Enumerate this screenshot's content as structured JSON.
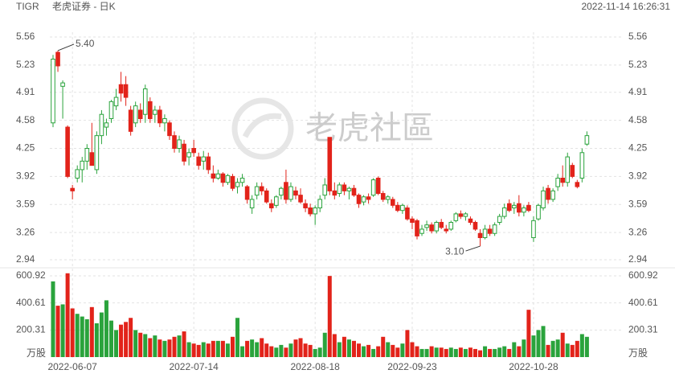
{
  "chart_data": {
    "type": "candlestick",
    "symbol": "TIGR",
    "title": "老虎证券 - 日K",
    "timestamp": "2022-11-14 16:26:31",
    "watermark": "老虎社區",
    "x": [
      null,
      null,
      null,
      null,
      "2022-06-07",
      null,
      null,
      null,
      null,
      null,
      null,
      null,
      null,
      null,
      null,
      null,
      null,
      null,
      null,
      null,
      null,
      null,
      null,
      null,
      null,
      null,
      null,
      null,
      null,
      "2022-07-14",
      null,
      null,
      null,
      null,
      null,
      null,
      null,
      null,
      null,
      null,
      null,
      null,
      null,
      null,
      null,
      null,
      null,
      null,
      null,
      null,
      null,
      null,
      null,
      null,
      "2022-08-18",
      null,
      null,
      null,
      null,
      null,
      null,
      null,
      null,
      null,
      null,
      null,
      null,
      null,
      null,
      null,
      null,
      null,
      null,
      null,
      "2022-09-23",
      null,
      null,
      null,
      null,
      null,
      null,
      null,
      null,
      null,
      null,
      null,
      null,
      null,
      null,
      null,
      null,
      null,
      null,
      null,
      null,
      null,
      null,
      null,
      null,
      "2022-10-28",
      null,
      null,
      null,
      null,
      null,
      null,
      null,
      null,
      null,
      null,
      null
    ],
    "open": [
      4.55,
      5.38,
      4.98,
      4.5,
      3.78,
      3.9,
      4.0,
      4.1,
      4.2,
      4.0,
      4.4,
      4.5,
      4.6,
      4.75,
      5.0,
      5.0,
      4.7,
      4.55,
      4.7,
      4.65,
      4.8,
      4.65,
      4.7,
      4.55,
      4.55,
      4.4,
      4.25,
      4.3,
      4.15,
      4.25,
      4.15,
      4.1,
      4.15,
      3.95,
      3.9,
      3.95,
      3.85,
      3.92,
      3.8,
      3.85,
      3.8,
      3.55,
      3.7,
      3.8,
      3.75,
      3.6,
      3.58,
      3.7,
      3.85,
      3.65,
      3.75,
      3.7,
      3.6,
      3.55,
      3.48,
      3.55,
      3.7,
      4.38,
      3.75,
      3.72,
      3.82,
      3.75,
      3.78,
      3.7,
      3.62,
      3.68,
      3.7,
      3.9,
      3.72,
      3.65,
      3.65,
      3.58,
      3.52,
      3.55,
      3.42,
      3.4,
      3.25,
      3.32,
      3.35,
      3.28,
      3.38,
      3.3,
      3.3,
      3.4,
      3.48,
      3.45,
      3.42,
      3.38,
      3.25,
      3.2,
      3.3,
      3.25,
      3.38,
      3.45,
      3.6,
      3.55,
      3.6,
      3.5,
      3.58,
      3.2,
      3.42,
      3.55,
      3.78,
      3.65,
      3.8,
      3.9,
      3.85,
      4.05,
      3.85,
      3.9,
      4.3
    ],
    "high": [
      5.35,
      5.4,
      5.05,
      4.52,
      3.82,
      4.05,
      4.15,
      4.3,
      4.55,
      4.45,
      4.7,
      4.6,
      4.82,
      4.95,
      5.15,
      5.1,
      4.75,
      4.8,
      4.78,
      5.0,
      4.85,
      4.75,
      4.75,
      4.65,
      4.58,
      4.45,
      4.4,
      4.35,
      4.25,
      4.35,
      4.2,
      4.22,
      4.2,
      4.05,
      4.0,
      3.97,
      3.95,
      3.95,
      3.9,
      3.95,
      3.82,
      3.7,
      3.85,
      3.85,
      3.78,
      3.65,
      3.7,
      3.8,
      4.0,
      3.85,
      3.8,
      3.78,
      3.65,
      3.6,
      3.58,
      3.7,
      3.9,
      4.38,
      3.85,
      3.85,
      3.85,
      3.8,
      3.82,
      3.72,
      3.7,
      3.72,
      3.9,
      3.92,
      3.75,
      3.7,
      3.68,
      3.62,
      3.6,
      3.58,
      3.45,
      3.42,
      3.35,
      3.4,
      3.38,
      3.4,
      3.42,
      3.35,
      3.4,
      3.5,
      3.52,
      3.5,
      3.45,
      3.4,
      3.3,
      3.35,
      3.35,
      3.38,
      3.48,
      3.6,
      3.65,
      3.62,
      3.7,
      3.58,
      3.62,
      3.45,
      3.6,
      3.8,
      3.82,
      3.78,
      3.95,
      4.05,
      4.2,
      4.08,
      3.88,
      4.25,
      4.45
    ],
    "low": [
      4.5,
      5.15,
      4.6,
      3.9,
      3.65,
      3.85,
      3.85,
      4.0,
      4.05,
      3.95,
      4.3,
      4.4,
      4.55,
      4.7,
      4.8,
      4.75,
      4.4,
      4.5,
      4.55,
      4.55,
      4.55,
      4.55,
      4.5,
      4.45,
      4.35,
      4.2,
      4.2,
      4.05,
      4.05,
      4.15,
      4.0,
      4.0,
      3.95,
      3.85,
      3.88,
      3.8,
      3.82,
      3.75,
      3.72,
      3.8,
      3.6,
      3.48,
      3.65,
      3.7,
      3.6,
      3.5,
      3.55,
      3.65,
      3.6,
      3.62,
      3.65,
      3.6,
      3.5,
      3.45,
      3.35,
      3.5,
      3.65,
      3.7,
      3.65,
      3.68,
      3.7,
      3.65,
      3.68,
      3.55,
      3.58,
      3.6,
      3.68,
      3.7,
      3.62,
      3.6,
      3.55,
      3.5,
      3.48,
      3.4,
      3.3,
      3.18,
      3.22,
      3.28,
      3.25,
      3.25,
      3.3,
      3.25,
      3.28,
      3.38,
      3.42,
      3.4,
      3.35,
      3.28,
      3.1,
      3.18,
      3.22,
      3.22,
      3.35,
      3.42,
      3.5,
      3.48,
      3.45,
      3.45,
      3.5,
      3.15,
      3.4,
      3.52,
      3.6,
      3.62,
      3.75,
      3.8,
      3.8,
      3.9,
      3.78,
      3.85,
      4.28
    ],
    "close": [
      5.3,
      5.22,
      5.02,
      3.92,
      3.75,
      4.0,
      4.1,
      4.25,
      4.05,
      4.4,
      4.65,
      4.55,
      4.8,
      4.85,
      4.9,
      4.85,
      4.45,
      4.75,
      4.6,
      4.95,
      4.6,
      4.7,
      4.55,
      4.6,
      4.4,
      4.25,
      4.35,
      4.1,
      4.2,
      4.2,
      4.05,
      4.15,
      4.0,
      3.9,
      3.95,
      3.85,
      3.93,
      3.78,
      3.85,
      3.9,
      3.65,
      3.65,
      3.8,
      3.75,
      3.62,
      3.55,
      3.68,
      3.78,
      3.65,
      3.8,
      3.7,
      3.62,
      3.55,
      3.48,
      3.55,
      3.65,
      3.82,
      3.75,
      3.7,
      3.82,
      3.75,
      3.78,
      3.7,
      3.6,
      3.68,
      3.65,
      3.88,
      3.72,
      3.65,
      3.68,
      3.58,
      3.52,
      3.58,
      3.42,
      3.38,
      3.22,
      3.3,
      3.35,
      3.28,
      3.38,
      3.32,
      3.28,
      3.38,
      3.48,
      3.45,
      3.48,
      3.38,
      3.3,
      3.2,
      3.3,
      3.25,
      3.35,
      3.45,
      3.55,
      3.52,
      3.58,
      3.5,
      3.55,
      3.52,
      3.4,
      3.58,
      3.75,
      3.65,
      3.75,
      3.9,
      3.85,
      4.15,
      3.92,
      3.8,
      4.2,
      4.4
    ],
    "volume": [
      560,
      380,
      390,
      620,
      360,
      320,
      300,
      280,
      370,
      250,
      330,
      420,
      270,
      200,
      240,
      260,
      290,
      200,
      180,
      170,
      140,
      160,
      130,
      120,
      130,
      150,
      160,
      190,
      110,
      100,
      90,
      110,
      100,
      120,
      120,
      120,
      100,
      150,
      290,
      80,
      120,
      130,
      110,
      140,
      100,
      80,
      70,
      90,
      70,
      100,
      130,
      140,
      100,
      90,
      60,
      70,
      180,
      600,
      170,
      110,
      150,
      130,
      120,
      100,
      80,
      90,
      60,
      80,
      150,
      110,
      90,
      70,
      100,
      200,
      110,
      80,
      60,
      60,
      80,
      70,
      70,
      60,
      70,
      60,
      70,
      60,
      70,
      60,
      50,
      80,
      60,
      60,
      70,
      80,
      60,
      110,
      80,
      130,
      350,
      160,
      200,
      230,
      90,
      120,
      130,
      180,
      100,
      90,
      120,
      170,
      150
    ],
    "ylim": [
      2.94,
      5.56
    ],
    "yticks": [
      5.56,
      5.23,
      4.91,
      4.58,
      4.25,
      3.92,
      3.59,
      3.26,
      2.94
    ],
    "volume_ylim": [
      0,
      600.92
    ],
    "volume_yticks": [
      600.92,
      400.61,
      200.31
    ],
    "volume_unit": "万股",
    "up_color": "#2aa33c",
    "down_color": "#e2231a",
    "annotations": [
      {
        "value": 5.4,
        "label": "5.40"
      },
      {
        "value": 3.1,
        "label": "3.10"
      }
    ]
  }
}
